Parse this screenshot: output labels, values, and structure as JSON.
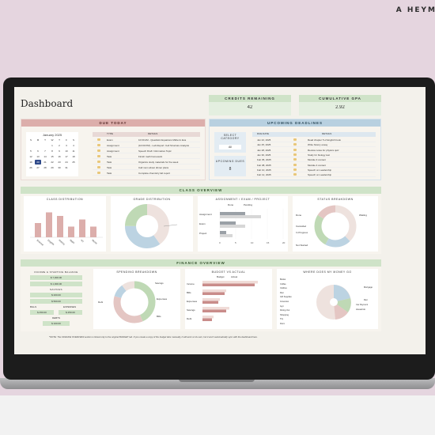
{
  "brand": "A HEYM",
  "dashboard": {
    "title": "Dashboard",
    "credits": {
      "label": "CREDITS REMAINING",
      "value": "42"
    },
    "gpa": {
      "label": "CUMULATIVE GPA",
      "value": "2.92"
    },
    "due_today": {
      "header": "DUE TODAY",
      "calendar_title": "January 2025",
      "weekdays": [
        "S",
        "M",
        "T",
        "W",
        "T",
        "F",
        "S"
      ],
      "days": [
        "",
        "",
        "",
        "1",
        "2",
        "3",
        "4",
        "5",
        "6",
        "7",
        "8",
        "9",
        "10",
        "11",
        "12",
        "13",
        "14",
        "15",
        "16",
        "17",
        "18",
        "19",
        "20",
        "21",
        "22",
        "23",
        "24",
        "25",
        "26",
        "27",
        "28",
        "29",
        "30",
        "31",
        ""
      ],
      "today": "20",
      "columns": [
        "TYPE",
        "DETAILS"
      ],
      "rows": [
        {
          "type": "Exam",
          "details": "10:00 AM - Quadratic Equations Midterm Exa"
        },
        {
          "type": "Assignment",
          "details": "(10:00 PM) - Lab Report: Cell Structure Analysis"
        },
        {
          "type": "Assignment",
          "details": "Speech Draft: Informative Topic"
        },
        {
          "type": "Task",
          "details": "Finish math homework"
        },
        {
          "type": "Task",
          "details": "Organize study materials for the week"
        },
        {
          "type": "Task",
          "details": "Call mom about dinner plans"
        },
        {
          "type": "Task",
          "details": "Complete chemistry lab report"
        }
      ]
    },
    "deadlines": {
      "header": "UPCOMING DEADLINES",
      "select_label": "SELECT CATEGORY",
      "select_value": "All",
      "upcoming_label": "UPCOMING DUES",
      "upcoming_value": "8",
      "columns": [
        "DUE DATE",
        "DETAILS"
      ],
      "rows": [
        {
          "date": "Jan 22, 2025",
          "details": "Read chapter 5 of English book"
        },
        {
          "date": "Jan 25, 2025",
          "details": "Write history essay"
        },
        {
          "date": "Jan 28, 2025",
          "details": "Review notes for physics quiz"
        },
        {
          "date": "Jan 30, 2025",
          "details": "Study for biology test"
        },
        {
          "date": "Feb 05, 2025",
          "details": "Module 3 content"
        },
        {
          "date": "Feb 08, 2025",
          "details": "Module 4 content"
        },
        {
          "date": "Feb 10, 2025",
          "details": "Speech on Leadership"
        },
        {
          "date": "Feb 12, 2025",
          "details": "Speech on Leadership"
        }
      ]
    },
    "class_overview": {
      "header": "CLASS OVERVIEW",
      "class_distribution": {
        "title": "CLASS DISTRIBUTION",
        "categories": [
          "Science",
          "English",
          "History",
          "Math",
          "Art",
          "Music"
        ],
        "values": [
          4,
          7,
          6,
          3,
          5,
          3
        ]
      },
      "grade_distribution": {
        "title": "GRADE DISTRIBUTION",
        "labels": [
          "A",
          "B",
          "C"
        ],
        "values": [
          40,
          35,
          25
        ]
      },
      "assignment": {
        "title": "ASSIGNMENT / EXAM / PROJECT",
        "legend": [
          "Done",
          "Pending"
        ],
        "categories": [
          "Assignment",
          "Exam",
          "Project"
        ],
        "done": [
          8,
          5,
          2
        ],
        "pending": [
          13,
          8,
          4
        ],
        "ticks": [
          "0",
          "5",
          "10",
          "15",
          "20"
        ]
      },
      "status": {
        "title": "STATUS BREAKDOWN",
        "labels": [
          "Done",
          "Waiting",
          "In Progress",
          "Cancelled",
          "Not Started"
        ]
      }
    },
    "finance_overview": {
      "header": "FINANCE OVERVIEW",
      "income_label": "INCOME & STARTING BALANCE",
      "income_values": [
        "$ 7,000.00",
        "$ 1,000.00"
      ],
      "savings_label": "SAVINGS",
      "savings_values": [
        "$ 200.00",
        "$ 500.00"
      ],
      "bills_label": "BILLS",
      "bills_value": "$ 450.00",
      "expenses_label": "EXPENSES",
      "expenses_value": "$ 250.00",
      "debts_label": "DEBTS",
      "debts_value": "$ 100.00",
      "spending_title": "SPENDING BREAKDOWN",
      "spending_labels": [
        "Savings",
        "Debt",
        "Expenses",
        "Bills"
      ],
      "budget_title": "BUDGET VS ACTUAL",
      "budget_legend": [
        "Budget",
        "Actual"
      ],
      "budget_categories": [
        "Income",
        "Bills",
        "Expenses",
        "Savings",
        "Debt"
      ],
      "money_title": "WHERE DOES MY MONEY GO",
      "money_labels": [
        "Books",
        "Coffee",
        "Clothes",
        "Rent",
        "Gift Supplies",
        "Groceries",
        "Gym",
        "Dining Out",
        "Shopping",
        "Trip",
        "Dorm"
      ],
      "money_side_labels": [
        "Mortgage",
        "Rent",
        "Car Payment",
        "Household"
      ]
    },
    "footer_note": "*NOTE: The FINANCE OVERVIEW section is linked only to the original BUDGET tab. If you create a copy of the budget tabs manually, it will work on its own, but it won't automatically sync with the dashboard here."
  }
}
